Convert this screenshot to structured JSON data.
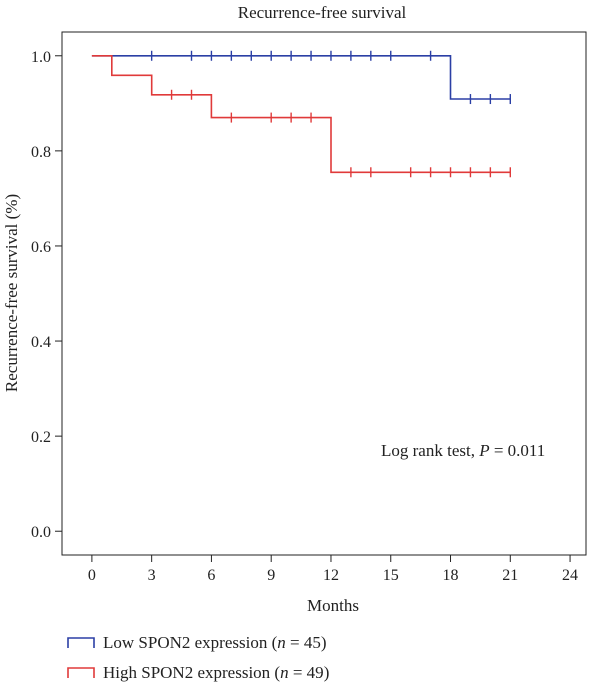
{
  "chart_data": {
    "type": "line",
    "title": "Recurrence-free survival",
    "xlabel": "Months",
    "ylabel": "Recurrence-free survival (%)",
    "xlim": [
      -1.5,
      24.8
    ],
    "ylim": [
      -0.05,
      1.05
    ],
    "xticks": [
      0,
      3,
      6,
      9,
      12,
      15,
      18,
      21,
      24
    ],
    "yticks": [
      0.0,
      0.2,
      0.4,
      0.6,
      0.8,
      1.0
    ],
    "annotation": {
      "prefix": "Log rank test, ",
      "p_symbol": "P",
      "suffix": " = 0.011"
    },
    "series": [
      {
        "name": "Low SPON2 expression",
        "n_label": "n",
        "n_value": " = 45",
        "color": "#2b3fa5",
        "steps": [
          [
            0,
            1.0
          ],
          [
            18,
            1.0
          ],
          [
            18,
            0.909
          ],
          [
            21,
            0.909
          ]
        ],
        "censored": [
          [
            3,
            1.0
          ],
          [
            5,
            1.0
          ],
          [
            6,
            1.0
          ],
          [
            7,
            1.0
          ],
          [
            8,
            1.0
          ],
          [
            9,
            1.0
          ],
          [
            10,
            1.0
          ],
          [
            11,
            1.0
          ],
          [
            12,
            1.0
          ],
          [
            13,
            1.0
          ],
          [
            14,
            1.0
          ],
          [
            15,
            1.0
          ],
          [
            17,
            1.0
          ],
          [
            19,
            0.909
          ],
          [
            20,
            0.909
          ],
          [
            21,
            0.909
          ]
        ]
      },
      {
        "name": "High SPON2 expression",
        "n_label": "n",
        "n_value": " = 49",
        "color": "#e03a3a",
        "steps": [
          [
            0,
            1.0
          ],
          [
            1,
            1.0
          ],
          [
            1,
            0.959
          ],
          [
            3,
            0.959
          ],
          [
            3,
            0.918
          ],
          [
            6,
            0.918
          ],
          [
            6,
            0.87
          ],
          [
            12,
            0.87
          ],
          [
            12,
            0.755
          ],
          [
            21,
            0.755
          ]
        ],
        "censored": [
          [
            4,
            0.918
          ],
          [
            5,
            0.918
          ],
          [
            7,
            0.87
          ],
          [
            9,
            0.87
          ],
          [
            10,
            0.87
          ],
          [
            11,
            0.87
          ],
          [
            13,
            0.755
          ],
          [
            14,
            0.755
          ],
          [
            16,
            0.755
          ],
          [
            17,
            0.755
          ],
          [
            18,
            0.755
          ],
          [
            19,
            0.755
          ],
          [
            20,
            0.755
          ],
          [
            21,
            0.755
          ]
        ]
      }
    ]
  }
}
